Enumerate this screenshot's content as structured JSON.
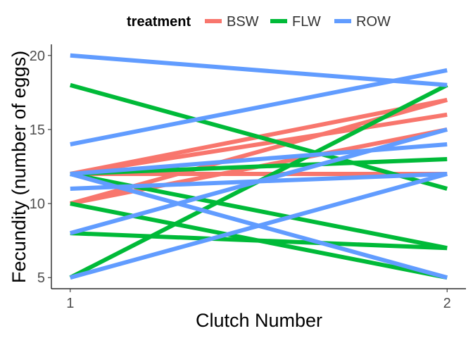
{
  "chart_data": {
    "type": "line",
    "title": "",
    "xlabel": "Clutch Number",
    "ylabel": "Fecundity (number of eggs)",
    "x": [
      1,
      2
    ],
    "x_ticks": [
      "1",
      "2"
    ],
    "y_ticks": [
      "5",
      "10",
      "15",
      "20"
    ],
    "xlim": [
      0.95,
      2.05
    ],
    "ylim": [
      4.25,
      20.75
    ],
    "grid": false,
    "legend": {
      "title": "treatment",
      "position": "top",
      "entries": [
        {
          "label": "BSW",
          "color": "#F8766D"
        },
        {
          "label": "FLW",
          "color": "#00BA38"
        },
        {
          "label": "ROW",
          "color": "#619CFF"
        }
      ]
    },
    "series": [
      {
        "group": "BSW",
        "values": [
          12,
          17
        ]
      },
      {
        "group": "BSW",
        "values": [
          12,
          16
        ]
      },
      {
        "group": "BSW",
        "values": [
          12,
          12
        ]
      },
      {
        "group": "BSW",
        "values": [
          10,
          17
        ]
      },
      {
        "group": "BSW",
        "values": [
          10,
          15
        ]
      },
      {
        "group": "FLW",
        "values": [
          18,
          11
        ]
      },
      {
        "group": "FLW",
        "values": [
          12,
          13
        ]
      },
      {
        "group": "FLW",
        "values": [
          12,
          7
        ]
      },
      {
        "group": "FLW",
        "values": [
          10,
          5
        ]
      },
      {
        "group": "FLW",
        "values": [
          8,
          7
        ]
      },
      {
        "group": "FLW",
        "values": [
          5,
          18
        ]
      },
      {
        "group": "ROW",
        "values": [
          20,
          18
        ]
      },
      {
        "group": "ROW",
        "values": [
          14,
          19
        ]
      },
      {
        "group": "ROW",
        "values": [
          12,
          14
        ]
      },
      {
        "group": "ROW",
        "values": [
          12,
          5
        ]
      },
      {
        "group": "ROW",
        "values": [
          11,
          12
        ]
      },
      {
        "group": "ROW",
        "values": [
          8,
          15
        ]
      },
      {
        "group": "ROW",
        "values": [
          5,
          12
        ]
      }
    ]
  }
}
